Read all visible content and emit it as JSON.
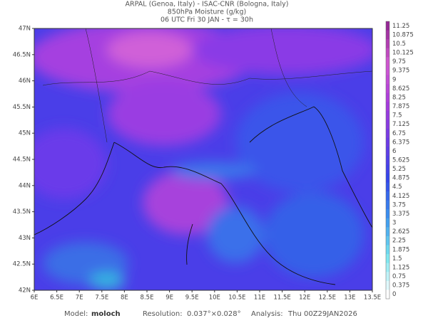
{
  "header": {
    "lines": [
      "ARPAL (Genoa, Italy)  -  ISAC-CNR (Bologna, Italy)",
      "850hPa Moisture (g/kg)",
      "06 UTC Fri 30 JAN  -  τ = 30h"
    ]
  },
  "map": {
    "lat_labels": [
      "47N",
      "46.5N",
      "46N",
      "45.5N",
      "45N",
      "44.5N",
      "44N",
      "43.5N",
      "43N",
      "42.5N",
      "42N"
    ],
    "lon_labels": [
      "6E",
      "6.5E",
      "7E",
      "7.5E",
      "8E",
      "8.5E",
      "9E",
      "9.5E",
      "10E",
      "10.5E",
      "11E",
      "11.5E",
      "12E",
      "12.5E",
      "13E",
      "13.5E"
    ]
  },
  "colorbar": {
    "labels": [
      "11.25",
      "10.875",
      "10.5",
      "10.125",
      "9.75",
      "9.375",
      "9",
      "8.625",
      "8.25",
      "7.875",
      "7.5",
      "7.125",
      "6.75",
      "6.375",
      "6",
      "5.625",
      "5.25",
      "4.875",
      "4.5",
      "4.125",
      "3.75",
      "3.375",
      "3",
      "2.625",
      "2.25",
      "1.875",
      "1.5",
      "1.125",
      "0.75",
      "0.375",
      "0"
    ]
  },
  "footer": {
    "model_label": "Model:",
    "model": "moloch",
    "resolution_label": "Resolution:",
    "resolution": "0.037°×0.028°",
    "analysis_label": "Analysis:",
    "analysis": "Thu 00Z29JAN2026"
  }
}
